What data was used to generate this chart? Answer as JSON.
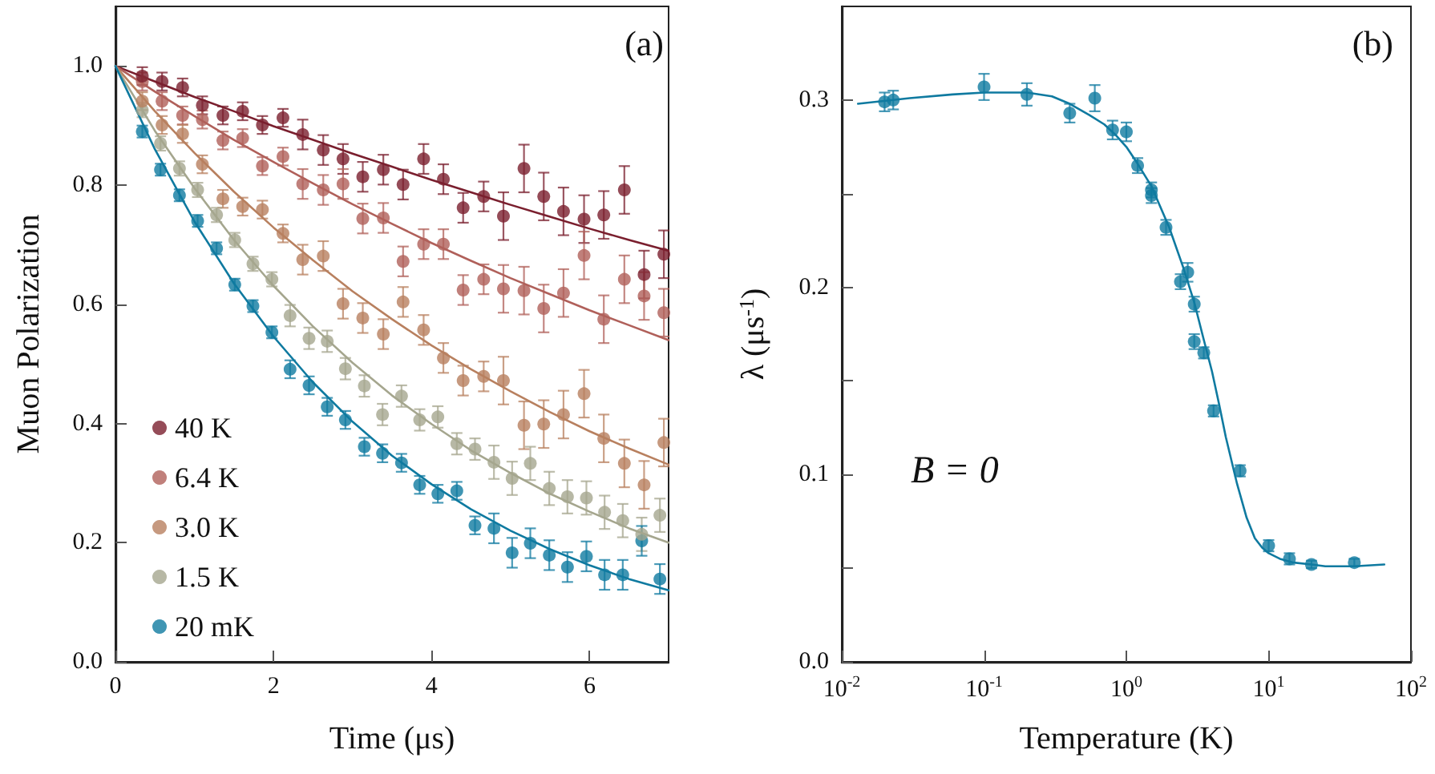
{
  "chart_data": [
    {
      "type": "scatter",
      "xlabel": "Time (μs)",
      "ylabel": "Muon Polarization",
      "annotations": [
        "(a)"
      ],
      "xlim": [
        0,
        7
      ],
      "ylim": [
        0,
        1.1
      ],
      "xticks": [
        0,
        2,
        4,
        6
      ],
      "yticks": [
        {
          "value": 0,
          "label": "0.0"
        },
        {
          "value": 0.2,
          "label": "0.2"
        },
        {
          "value": 0.4,
          "label": "0.4"
        },
        {
          "value": 0.6,
          "label": "0.6"
        },
        {
          "value": 0.8,
          "label": "0.8"
        },
        {
          "value": 1,
          "label": "1.0"
        }
      ],
      "legend": "bottom left",
      "grid": false,
      "marker": "circle",
      "series": [
        {
          "name": "40 K",
          "color": "#7a1f2e",
          "x": [
            0.34,
            0.59,
            0.85,
            1.1,
            1.36,
            1.61,
            1.86,
            2.12,
            2.37,
            2.63,
            2.88,
            3.13,
            3.39,
            3.64,
            3.9,
            4.15,
            4.4,
            4.66,
            4.91,
            5.17,
            5.42,
            5.67,
            5.93,
            6.18,
            6.44,
            6.69,
            6.94
          ],
          "values": [
            0.983,
            0.974,
            0.964,
            0.934,
            0.917,
            0.924,
            0.901,
            0.913,
            0.885,
            0.859,
            0.844,
            0.814,
            0.826,
            0.801,
            0.844,
            0.81,
            0.762,
            0.781,
            0.748,
            0.828,
            0.781,
            0.756,
            0.743,
            0.75,
            0.792,
            0.65,
            0.684
          ],
          "errors": [
            0.015,
            0.015,
            0.015,
            0.015,
            0.015,
            0.015,
            0.015,
            0.015,
            0.025,
            0.025,
            0.025,
            0.025,
            0.025,
            0.025,
            0.025,
            0.025,
            0.025,
            0.025,
            0.04,
            0.04,
            0.04,
            0.04,
            0.04,
            0.04,
            0.04,
            0.04,
            0.04
          ]
        },
        {
          "name": "6.4 K",
          "color": "#b0605a",
          "x": [
            0.34,
            0.59,
            0.85,
            1.1,
            1.36,
            1.61,
            1.86,
            2.12,
            2.37,
            2.63,
            2.88,
            3.13,
            3.39,
            3.64,
            3.9,
            4.15,
            4.4,
            4.66,
            4.91,
            5.17,
            5.42,
            5.67,
            5.93,
            6.18,
            6.44,
            6.69,
            6.94
          ],
          "values": [
            0.974,
            0.941,
            0.917,
            0.91,
            0.875,
            0.879,
            0.832,
            0.848,
            0.802,
            0.792,
            0.802,
            0.744,
            0.745,
            0.672,
            0.701,
            0.701,
            0.624,
            0.642,
            0.626,
            0.623,
            0.593,
            0.619,
            0.682,
            0.575,
            0.642,
            0.614,
            0.586
          ],
          "errors": [
            0.015,
            0.015,
            0.015,
            0.015,
            0.015,
            0.015,
            0.015,
            0.015,
            0.025,
            0.025,
            0.025,
            0.025,
            0.025,
            0.025,
            0.025,
            0.025,
            0.025,
            0.025,
            0.04,
            0.04,
            0.04,
            0.04,
            0.04,
            0.04,
            0.04,
            0.04,
            0.04
          ]
        },
        {
          "name": "3.0 K",
          "color": "#b8805f",
          "x": [
            0.34,
            0.59,
            0.85,
            1.1,
            1.36,
            1.61,
            1.86,
            2.12,
            2.37,
            2.63,
            2.88,
            3.13,
            3.39,
            3.64,
            3.9,
            4.15,
            4.4,
            4.66,
            4.91,
            5.17,
            5.42,
            5.67,
            5.93,
            6.18,
            6.44,
            6.69,
            6.94
          ],
          "values": [
            0.941,
            0.901,
            0.886,
            0.835,
            0.777,
            0.764,
            0.759,
            0.719,
            0.675,
            0.681,
            0.601,
            0.577,
            0.55,
            0.604,
            0.557,
            0.51,
            0.472,
            0.479,
            0.472,
            0.397,
            0.399,
            0.415,
            0.45,
            0.375,
            0.333,
            0.297,
            0.368
          ],
          "errors": [
            0.015,
            0.015,
            0.015,
            0.015,
            0.015,
            0.015,
            0.015,
            0.015,
            0.025,
            0.025,
            0.025,
            0.025,
            0.025,
            0.025,
            0.025,
            0.025,
            0.025,
            0.025,
            0.04,
            0.04,
            0.04,
            0.04,
            0.04,
            0.04,
            0.04,
            0.04,
            0.04
          ]
        },
        {
          "name": "1.5 K",
          "color": "#a5a68e",
          "x": [
            0.34,
            0.57,
            0.81,
            1.04,
            1.28,
            1.51,
            1.74,
            1.98,
            2.21,
            2.45,
            2.68,
            2.91,
            3.15,
            3.38,
            3.62,
            3.85,
            4.08,
            4.32,
            4.55,
            4.79,
            5.02,
            5.25,
            5.49,
            5.72,
            5.96,
            6.19,
            6.42,
            6.66,
            6.89
          ],
          "values": [
            0.926,
            0.87,
            0.828,
            0.792,
            0.75,
            0.708,
            0.668,
            0.642,
            0.581,
            0.543,
            0.538,
            0.492,
            0.463,
            0.415,
            0.446,
            0.406,
            0.411,
            0.366,
            0.357,
            0.335,
            0.308,
            0.333,
            0.291,
            0.277,
            0.275,
            0.251,
            0.237,
            0.214,
            0.246
          ],
          "errors": [
            0.012,
            0.012,
            0.012,
            0.012,
            0.012,
            0.012,
            0.012,
            0.012,
            0.018,
            0.018,
            0.018,
            0.018,
            0.018,
            0.018,
            0.018,
            0.018,
            0.018,
            0.018,
            0.018,
            0.028,
            0.028,
            0.028,
            0.028,
            0.028,
            0.028,
            0.028,
            0.028,
            0.028,
            0.028
          ]
        },
        {
          "name": "20 mK",
          "color": "#0f7aa0",
          "x": [
            0.34,
            0.57,
            0.81,
            1.04,
            1.28,
            1.51,
            1.74,
            1.98,
            2.21,
            2.45,
            2.68,
            2.91,
            3.15,
            3.38,
            3.62,
            3.85,
            4.08,
            4.32,
            4.55,
            4.79,
            5.02,
            5.25,
            5.49,
            5.72,
            5.96,
            6.19,
            6.42,
            6.66,
            6.89
          ],
          "values": [
            0.89,
            0.826,
            0.783,
            0.74,
            0.694,
            0.633,
            0.597,
            0.553,
            0.491,
            0.464,
            0.428,
            0.406,
            0.361,
            0.35,
            0.334,
            0.297,
            0.282,
            0.287,
            0.229,
            0.224,
            0.183,
            0.199,
            0.179,
            0.159,
            0.177,
            0.146,
            0.146,
            0.203,
            0.139
          ],
          "errors": [
            0.01,
            0.01,
            0.01,
            0.01,
            0.01,
            0.01,
            0.01,
            0.01,
            0.015,
            0.015,
            0.015,
            0.015,
            0.015,
            0.015,
            0.015,
            0.015,
            0.015,
            0.015,
            0.015,
            0.025,
            0.025,
            0.025,
            0.025,
            0.025,
            0.025,
            0.025,
            0.025,
            0.025,
            0.025
          ]
        },
        {
          "type": "line",
          "marker": "none",
          "line_style": "solid",
          "color": "#7a1f2e",
          "x": [
            0,
            0.5,
            1,
            1.5,
            2,
            2.5,
            3,
            3.5,
            4,
            4.5,
            5,
            5.5,
            6,
            6.5,
            7
          ],
          "values": [
            1,
            0.974,
            0.948,
            0.924,
            0.899,
            0.876,
            0.853,
            0.831,
            0.809,
            0.788,
            0.767,
            0.747,
            0.727,
            0.708,
            0.69
          ]
        },
        {
          "type": "line",
          "marker": "none",
          "line_style": "solid",
          "color": "#b0605a",
          "x": [
            0,
            0.5,
            1,
            1.5,
            2,
            2.5,
            3,
            3.5,
            4,
            4.5,
            5,
            5.5,
            6,
            6.5,
            7
          ],
          "values": [
            1,
            0.957,
            0.916,
            0.876,
            0.839,
            0.803,
            0.768,
            0.735,
            0.703,
            0.673,
            0.644,
            0.617,
            0.59,
            0.565,
            0.54
          ]
        },
        {
          "type": "line",
          "marker": "none",
          "line_style": "solid",
          "color": "#b8805f",
          "x": [
            0,
            0.5,
            1,
            1.5,
            2,
            2.5,
            3,
            3.5,
            4,
            4.5,
            5,
            5.5,
            6,
            6.5,
            7
          ],
          "values": [
            1,
            0.924,
            0.854,
            0.789,
            0.729,
            0.674,
            0.622,
            0.575,
            0.531,
            0.491,
            0.454,
            0.419,
            0.387,
            0.358,
            0.331
          ]
        },
        {
          "type": "line",
          "marker": "none",
          "line_style": "solid",
          "color": "#a5a68e",
          "x": [
            0,
            0.5,
            1,
            1.5,
            2,
            2.5,
            3,
            3.5,
            4,
            4.5,
            5,
            5.5,
            6,
            6.5,
            7
          ],
          "values": [
            1,
            0.891,
            0.795,
            0.708,
            0.631,
            0.563,
            0.502,
            0.447,
            0.399,
            0.355,
            0.317,
            0.282,
            0.252,
            0.224,
            0.2
          ]
        },
        {
          "type": "line",
          "marker": "none",
          "line_style": "solid",
          "color": "#0f7aa0",
          "x": [
            0,
            0.25,
            0.5,
            1,
            1.5,
            2,
            2.5,
            3,
            3.5,
            4,
            4.5,
            5,
            5.5,
            6,
            6.5,
            7
          ],
          "values": [
            1,
            0.93,
            0.86,
            0.739,
            0.635,
            0.546,
            0.469,
            0.403,
            0.346,
            0.298,
            0.256,
            0.22,
            0.189,
            0.162,
            0.139,
            0.12
          ]
        }
      ]
    },
    {
      "type": "scatter",
      "xlabel": "Temperature (K)",
      "ylabel": "λ (μs$^{-1}$)",
      "annotations": [
        "(b)",
        "B = 0"
      ],
      "log": "x",
      "xlim": [
        0.01,
        100
      ],
      "ylim": [
        0,
        0.35
      ],
      "xticks": [
        {
          "value": 0.01,
          "label": "10$^{-2}$"
        },
        {
          "value": 0.1,
          "label": "10$^{-1}$"
        },
        {
          "value": 1,
          "label": "10$^{0}$"
        },
        {
          "value": 10,
          "label": "10$^{1}$"
        },
        {
          "value": 100,
          "label": "10$^{2}$"
        }
      ],
      "yticks": [
        {
          "value": 0,
          "label": "0.0"
        },
        {
          "value": 0.05,
          "label": null
        },
        {
          "value": 0.1,
          "label": "0.1"
        },
        {
          "value": 0.15,
          "label": null
        },
        {
          "value": 0.2,
          "label": "0.2"
        },
        {
          "value": 0.25,
          "label": null
        },
        {
          "value": 0.3,
          "label": "0.3"
        }
      ],
      "grid": false,
      "marker": "circle",
      "series": [
        {
          "color": "#0f7aa0",
          "x": [
            0.02,
            0.023,
            0.1,
            0.2,
            0.4,
            0.6,
            0.8,
            1.0,
            1.2,
            1.5,
            1.5,
            1.9,
            2.4,
            2.7,
            3.0,
            3.0,
            3.5,
            4.1,
            6.3,
            10,
            14,
            20,
            40
          ],
          "values": [
            0.299,
            0.3,
            0.307,
            0.303,
            0.293,
            0.301,
            0.284,
            0.283,
            0.265,
            0.252,
            0.249,
            0.232,
            0.203,
            0.208,
            0.191,
            0.171,
            0.165,
            0.134,
            0.102,
            0.062,
            0.055,
            0.052,
            0.053
          ],
          "errors": [
            0.005,
            0.005,
            0.007,
            0.006,
            0.005,
            0.007,
            0.005,
            0.005,
            0.004,
            0.004,
            0.004,
            0.004,
            0.004,
            0.005,
            0.004,
            0.004,
            0.003,
            0.003,
            0.003,
            0.003,
            0.003,
            0.002,
            0.002
          ]
        },
        {
          "type": "line",
          "marker": "none",
          "line_style": "solid",
          "color": "#0f7aa0",
          "x": [
            0.013,
            0.03,
            0.06,
            0.1,
            0.2,
            0.3,
            0.4,
            0.55,
            0.7,
            0.85,
            1,
            1.2,
            1.5,
            2,
            2.5,
            3,
            3.5,
            4,
            4.5,
            5,
            6,
            7,
            8,
            9,
            10,
            12,
            15,
            20,
            25,
            40,
            65
          ],
          "values": [
            0.298,
            0.301,
            0.303,
            0.304,
            0.304,
            0.302,
            0.298,
            0.292,
            0.287,
            0.281,
            0.275,
            0.266,
            0.254,
            0.232,
            0.211,
            0.192,
            0.172,
            0.155,
            0.137,
            0.12,
            0.095,
            0.077,
            0.066,
            0.061,
            0.058,
            0.055,
            0.053,
            0.052,
            0.051,
            0.051,
            0.052
          ]
        }
      ]
    }
  ]
}
